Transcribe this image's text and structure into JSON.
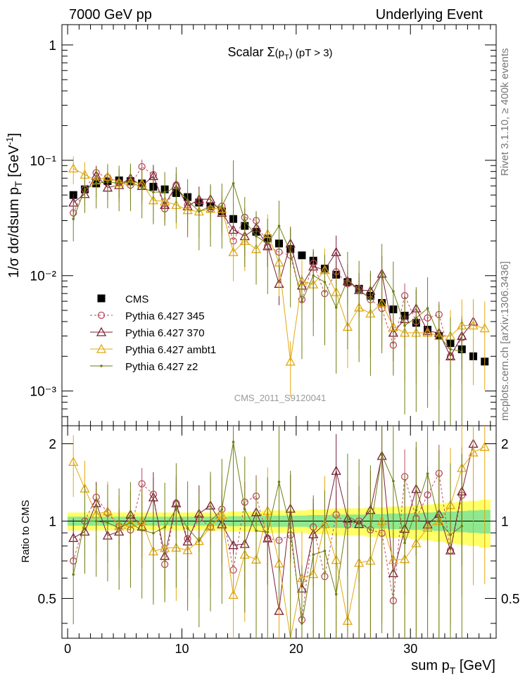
{
  "header": {
    "left": "7000 GeV pp",
    "right": "Underlying Event"
  },
  "side_labels": {
    "right_top": "Rivet 3.1.10, ≥ 400k events",
    "right_bottom": "mcplots.cern.ch [arXiv:1306.3436]"
  },
  "chart_data": [
    {
      "type": "scatter",
      "panel": "main",
      "title": "Scalar Σ(pT) (pT > 3)",
      "watermark": "CMS_2011_S9120041",
      "xlabel": "sum pT [GeV]",
      "ylabel": "1/σ dσ/dsum pT [GeV-1]",
      "xlim": [
        -0.5,
        37.5
      ],
      "ylim": [
        0.0005,
        1.5
      ],
      "yscale": "log",
      "x_ticks": [
        "0",
        "10",
        "20",
        "30"
      ],
      "y_ticks": [
        "10⁻³",
        "10⁻²",
        "10⁻¹",
        "1"
      ],
      "legend_position": "lower-left",
      "x": [
        0.5,
        1.5,
        2.5,
        3.5,
        4.5,
        5.5,
        6.5,
        7.5,
        8.5,
        9.5,
        10.5,
        11.5,
        12.5,
        13.5,
        14.5,
        15.5,
        16.5,
        17.5,
        18.5,
        19.5,
        20.5,
        21.5,
        22.5,
        23.5,
        24.5,
        25.5,
        26.5,
        27.5,
        28.5,
        29.5,
        30.5,
        31.5,
        32.5,
        33.5,
        34.5,
        35.5,
        36.5
      ],
      "series": [
        {
          "name": "CMS",
          "color": "#000000",
          "marker": "square",
          "line": "none",
          "values": [
            0.05,
            0.056,
            0.063,
            0.066,
            0.067,
            0.066,
            0.063,
            0.059,
            0.056,
            0.052,
            0.048,
            0.043,
            0.04,
            0.036,
            0.031,
            0.027,
            0.024,
            0.021,
            0.019,
            0.017,
            0.015,
            0.0135,
            0.0115,
            0.0102,
            0.0088,
            0.0077,
            0.0067,
            0.0058,
            0.0051,
            0.0045,
            0.0039,
            0.0034,
            0.003,
            0.0026,
            0.0023,
            0.002,
            0.0018
          ]
        },
        {
          "name": "Pythia 6.427 345",
          "color": "#b84a5e",
          "marker": "circle",
          "line": "dashed",
          "values": [
            0.035,
            0.056,
            0.078,
            0.071,
            0.064,
            0.061,
            0.088,
            0.075,
            0.038,
            0.061,
            0.041,
            0.044,
            0.038,
            0.04,
            0.02,
            0.032,
            0.03,
            0.018,
            0.016,
            0.015,
            0.0062,
            0.0128,
            0.007,
            0.0108,
            0.0085,
            0.0077,
            0.0062,
            0.0052,
            0.0025,
            0.0067,
            0.004,
            0.0043,
            0.0046,
            0.002,
            0.0029,
            null,
            null
          ]
        },
        {
          "name": "Pythia 6.427 370",
          "color": "#7b1f35",
          "marker": "triangle",
          "line": "solid",
          "values": [
            0.043,
            0.051,
            0.074,
            0.058,
            0.061,
            0.07,
            0.06,
            0.073,
            0.041,
            0.061,
            0.04,
            0.046,
            0.046,
            0.035,
            0.025,
            0.022,
            0.026,
            0.018,
            0.0085,
            0.019,
            0.0082,
            0.012,
            0.0112,
            0.016,
            0.009,
            0.0075,
            0.0074,
            0.0104,
            0.0032,
            0.0042,
            0.0052,
            0.0033,
            0.0032,
            0.002,
            0.003,
            0.004,
            null
          ]
        },
        {
          "name": "Pythia 6.427 ambt1",
          "color": "#e3a80e",
          "marker": "triangle",
          "line": "solid",
          "values": [
            0.085,
            0.075,
            0.067,
            0.072,
            0.064,
            0.065,
            0.063,
            0.045,
            0.044,
            0.041,
            0.037,
            0.036,
            0.038,
            0.038,
            0.016,
            0.02,
            0.017,
            0.023,
            0.013,
            0.0018,
            0.009,
            0.0084,
            0.0112,
            0.0072,
            0.0036,
            0.0053,
            0.0047,
            0.0058,
            0.0036,
            0.0032,
            0.0032,
            0.0032,
            0.003,
            0.003,
            0.0037,
            0.0037,
            0.0035
          ]
        },
        {
          "name": "Pythia 6.427 z2",
          "color": "#6f7e12",
          "marker": "dot",
          "line": "solid",
          "values": [
            0.031,
            0.056,
            0.063,
            0.065,
            0.063,
            0.065,
            0.058,
            0.053,
            0.053,
            0.058,
            0.045,
            0.036,
            0.04,
            0.04,
            0.063,
            0.03,
            0.022,
            0.019,
            0.027,
            0.016,
            0.006,
            0.01,
            0.0088,
            0.0053,
            0.0092,
            0.0076,
            0.0062,
            0.0105,
            0.0073,
            0.0037,
            0.0043,
            0.0052,
            0.003,
            0.0023,
            0.0022,
            null,
            null
          ]
        }
      ]
    },
    {
      "type": "line",
      "panel": "ratio",
      "ylabel": "Ratio to CMS",
      "xlabel": "sum pT [GeV]",
      "xlim": [
        -0.5,
        37.5
      ],
      "ylim": [
        0.35,
        2.35
      ],
      "yscale": "log",
      "y_ticks": [
        "0.5",
        "1",
        "2"
      ],
      "band_inner_color": "#8ee88e",
      "band_outer_color": "#ffff66",
      "band_inner_halfwidth": [
        0.04,
        0.04,
        0.04,
        0.04,
        0.04,
        0.04,
        0.04,
        0.04,
        0.04,
        0.04,
        0.04,
        0.04,
        0.04,
        0.04,
        0.045,
        0.045,
        0.045,
        0.05,
        0.05,
        0.05,
        0.05,
        0.055,
        0.055,
        0.06,
        0.06,
        0.06,
        0.065,
        0.065,
        0.07,
        0.07,
        0.075,
        0.08,
        0.085,
        0.09,
        0.095,
        0.1,
        0.105
      ],
      "band_outer_halfwidth": [
        0.08,
        0.08,
        0.08,
        0.08,
        0.08,
        0.08,
        0.08,
        0.08,
        0.08,
        0.08,
        0.08,
        0.08,
        0.08,
        0.08,
        0.09,
        0.09,
        0.09,
        0.1,
        0.1,
        0.1,
        0.1,
        0.11,
        0.11,
        0.12,
        0.12,
        0.12,
        0.13,
        0.13,
        0.14,
        0.14,
        0.15,
        0.16,
        0.17,
        0.18,
        0.19,
        0.2,
        0.21
      ]
    }
  ]
}
